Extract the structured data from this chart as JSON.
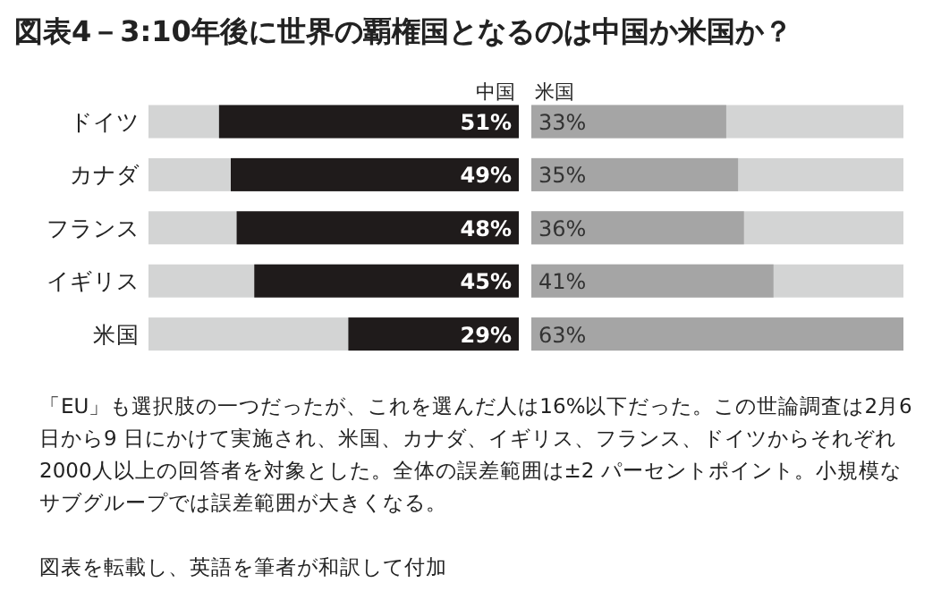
{
  "chart_data": [
    {
      "type": "bar",
      "orientation": "horizontal",
      "title": "図表4－3:10年後に世界の覇権国となるのは中国か米国か？",
      "categories": [
        "ドイツ",
        "カナダ",
        "フランス",
        "イギリス",
        "米国"
      ],
      "series": [
        {
          "name": "中国",
          "color": "#1f1b1b",
          "values": [
            51,
            49,
            48,
            45,
            29
          ],
          "value_labels": [
            "51%",
            "49%",
            "48%",
            "45%",
            "29%"
          ]
        }
      ],
      "xlim": [
        63,
        0
      ],
      "tick_labels": "y",
      "annotations": [
        "「EU」も選択肢の一つだったが、これを選んだ人は16%以下だった。この世論調査は2月6 日から9 日にかけて実施され、米国、カナダ、イギリス、フランス、ドイツからそれぞれ2000人以上の回答者を対象とした。全体の誤差範囲は±2 パーセントポイント。小規模なサブグループでは誤差範囲が大きくなる。",
        "図表を転載し、英語を筆者が和訳して付加"
      ]
    },
    {
      "type": "bar",
      "orientation": "horizontal",
      "categories": [
        null,
        null,
        null,
        null,
        null
      ],
      "series": [
        {
          "name": "米国",
          "color": "#a5a5a5",
          "values": [
            33,
            35,
            36,
            41,
            63
          ],
          "value_labels": [
            "33%",
            "35%",
            "36%",
            "41%",
            "63%"
          ]
        }
      ],
      "xlim": [
        0,
        63
      ],
      "tick_labels": false
    }
  ]
}
